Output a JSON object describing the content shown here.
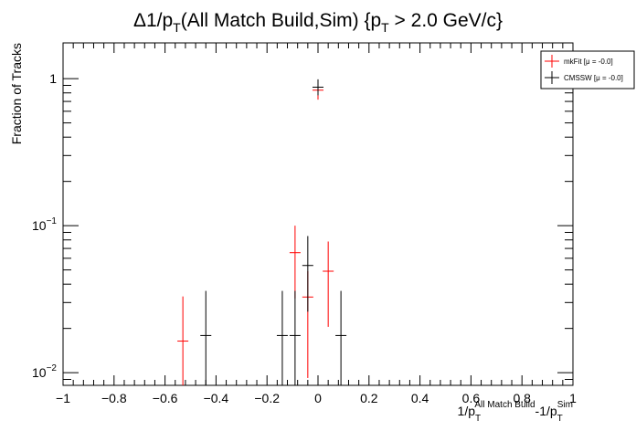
{
  "chart_data": {
    "type": "scatter",
    "title": {
      "main": "Δ1/p",
      "sub1": "T",
      "mid": "(All Match Build,Sim) {p",
      "sub2": "T",
      "tail": " > 2.0 GeV/c}"
    },
    "ylabel": "Fraction of Tracks",
    "xlabel": {
      "a": "1/p",
      "a_sub": "T",
      "a_sup": "All Match Build",
      "b": "-1/p",
      "b_sub": "T",
      "b_sup": "Sim"
    },
    "xlim": [
      -1,
      1
    ],
    "ylim": [
      0.0082,
      1.75
    ],
    "y_scale": "log",
    "x_ticks": [
      {
        "v": -1,
        "label": "−1"
      },
      {
        "v": -0.8,
        "label": "−0.8"
      },
      {
        "v": -0.6,
        "label": "−0.6"
      },
      {
        "v": -0.4,
        "label": "−0.4"
      },
      {
        "v": -0.2,
        "label": "−0.2"
      },
      {
        "v": 0,
        "label": "0"
      },
      {
        "v": 0.2,
        "label": "0.2"
      },
      {
        "v": 0.4,
        "label": "0.4"
      },
      {
        "v": 0.6,
        "label": "0.6"
      },
      {
        "v": 0.8,
        "label": "0.8"
      },
      {
        "v": 1,
        "label": "1"
      }
    ],
    "y_ticks": [
      {
        "v": 0.01,
        "base": "10",
        "exp": "−2"
      },
      {
        "v": 0.1,
        "base": "10",
        "exp": "−1"
      },
      {
        "v": 1,
        "base": "1",
        "exp": ""
      }
    ],
    "grid": false,
    "legend_position": "top-right",
    "series": [
      {
        "name": "mkFit  [μ = -0.0]",
        "color": "#ff0000",
        "points": [
          {
            "x": -0.53,
            "y": 0.0164,
            "ylo": 0.0082,
            "yhi": 0.033
          },
          {
            "x": -0.09,
            "y": 0.0655,
            "ylo": 0.032,
            "yhi": 0.1
          },
          {
            "x": -0.04,
            "y": 0.0327,
            "ylo": 0.0092,
            "yhi": 0.049
          },
          {
            "x": 0.0,
            "y": 0.835,
            "ylo": 0.72,
            "yhi": 0.96
          },
          {
            "x": 0.04,
            "y": 0.049,
            "ylo": 0.0205,
            "yhi": 0.078
          }
        ]
      },
      {
        "name": "CMSSW  [μ = -0.0]",
        "color": "#000000",
        "points": [
          {
            "x": -0.44,
            "y": 0.0179,
            "ylo": 0.0082,
            "yhi": 0.036
          },
          {
            "x": -0.14,
            "y": 0.0179,
            "ylo": 0.0082,
            "yhi": 0.036
          },
          {
            "x": -0.09,
            "y": 0.0179,
            "ylo": 0.0082,
            "yhi": 0.036
          },
          {
            "x": -0.04,
            "y": 0.0536,
            "ylo": 0.026,
            "yhi": 0.085
          },
          {
            "x": 0.0,
            "y": 0.875,
            "ylo": 0.77,
            "yhi": 0.99
          },
          {
            "x": 0.09,
            "y": 0.0179,
            "ylo": 0.0082,
            "yhi": 0.036
          }
        ]
      }
    ]
  }
}
